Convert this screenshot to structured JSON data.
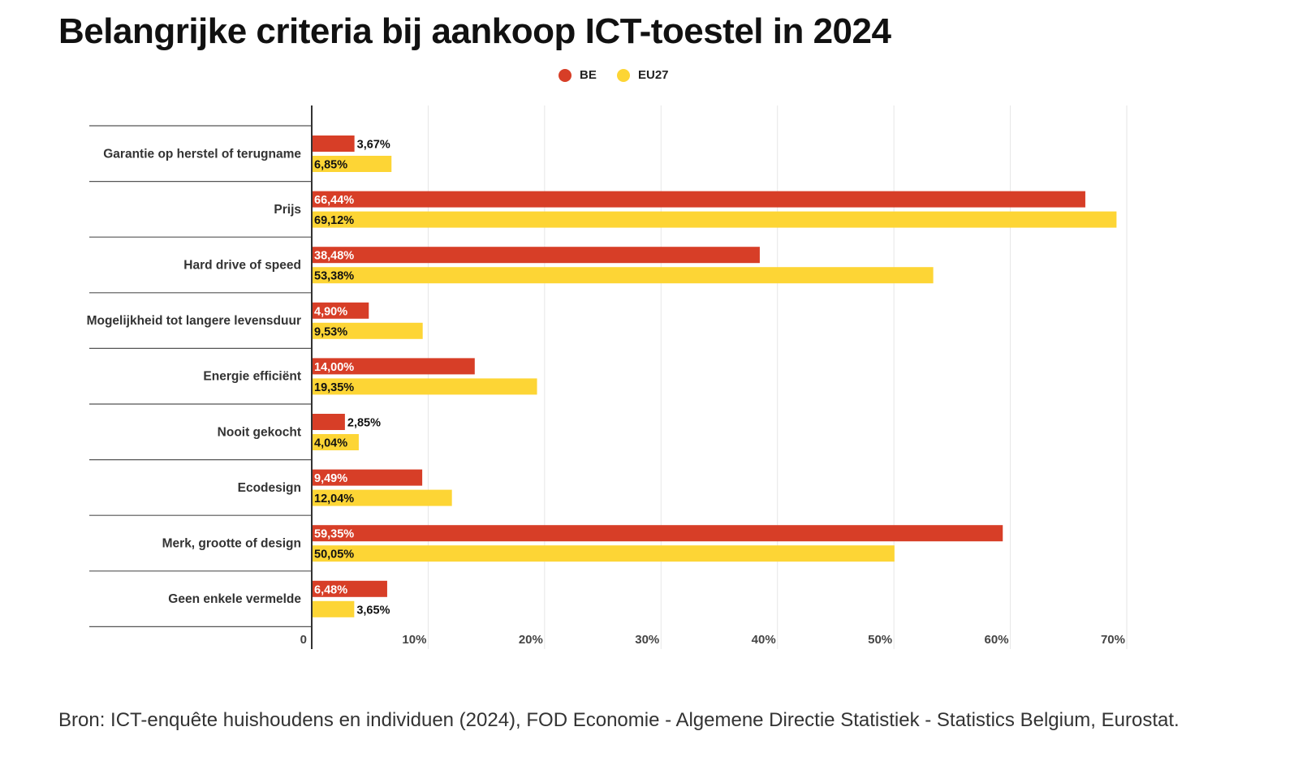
{
  "chart_data": {
    "type": "bar",
    "orientation": "horizontal",
    "title": "Belangrijke criteria bij aankoop ICT-toestel in 2024",
    "categories": [
      "Garantie op herstel of terugname",
      "Prijs",
      "Hard drive of speed",
      "Mogelijkheid tot langere levensduur",
      "Energie efficiënt",
      "Nooit gekocht",
      "Ecodesign",
      "Merk, grootte of design",
      "Geen enkele vermelde"
    ],
    "series": [
      {
        "name": "BE",
        "color": "#d73e27",
        "values": [
          3.67,
          66.44,
          38.48,
          4.9,
          14.0,
          2.85,
          9.49,
          59.35,
          6.48
        ],
        "labels": [
          "3,67%",
          "66,44%",
          "38,48%",
          "4,90%",
          "14,00%",
          "2,85%",
          "9,49%",
          "59,35%",
          "6,48%"
        ]
      },
      {
        "name": "EU27",
        "color": "#fdd535",
        "values": [
          6.85,
          69.12,
          53.38,
          9.53,
          19.35,
          4.04,
          12.04,
          50.05,
          3.65
        ],
        "labels": [
          "6,85%",
          "69,12%",
          "53,38%",
          "9,53%",
          "19,35%",
          "4,04%",
          "12,04%",
          "50,05%",
          "3,65%"
        ]
      }
    ],
    "xlim": [
      0,
      70
    ],
    "xticks": [
      0,
      10,
      20,
      30,
      40,
      50,
      60,
      70
    ],
    "xtick_labels": [
      "0",
      "10%",
      "20%",
      "30%",
      "40%",
      "50%",
      "60%",
      "70%"
    ],
    "legend_position": "top-center",
    "grid": true
  },
  "source": "Bron: ICT-enquête huishoudens en individuen (2024), FOD Economie - Algemene Directie Statistiek - Statistics Belgium, Eurostat."
}
